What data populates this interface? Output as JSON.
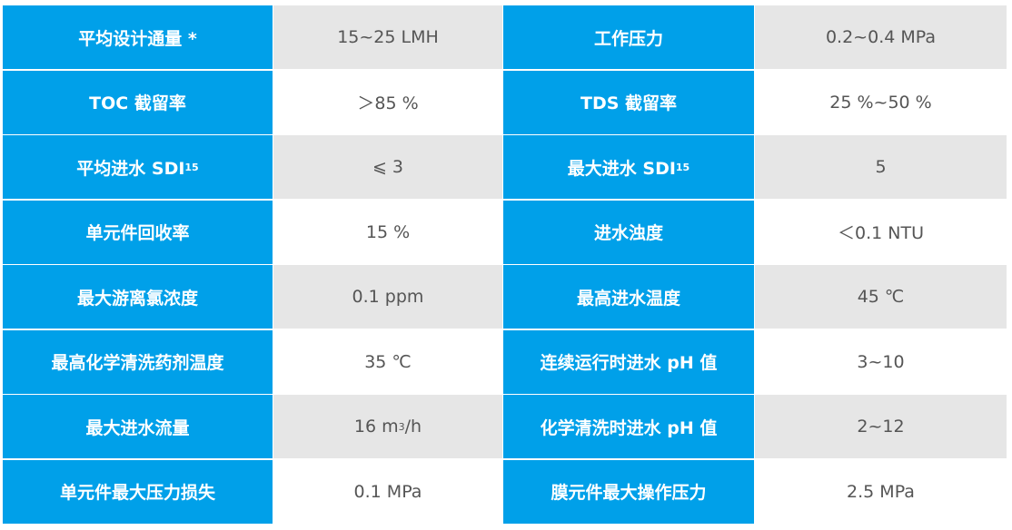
{
  "colors": {
    "label_bg": "#00a0e9",
    "alt_row_bg": "#e6e6e6"
  },
  "rows": [
    {
      "l1": "平均设计通量 *",
      "v1": "15~25 LMH",
      "l2": "工作压力",
      "v2": "0.2~0.4 MPa"
    },
    {
      "l1": "TOC 截留率",
      "v1": "＞85 %",
      "l2": "TDS 截留率",
      "v2": "25 %~50 %"
    },
    {
      "l1": "平均进水 SDI",
      "l1_sub": "15",
      "v1": "⩽ 3",
      "l2": "最大进水 SDI",
      "l2_sub": "15",
      "v2": "5"
    },
    {
      "l1": "单元件回收率",
      "v1": "15 %",
      "l2": "进水浊度",
      "v2": "＜0.1 NTU"
    },
    {
      "l1": "最大游离氯浓度",
      "v1": "0.1 ppm",
      "l2": "最高进水温度",
      "v2": "45 ℃"
    },
    {
      "l1": "最高化学清洗药剂温度",
      "v1": "35 ℃",
      "l2": "连续运行时进水 pH 值",
      "v2": "3~10"
    },
    {
      "l1": "最大进水流量",
      "v1": "16 m",
      "v1_sup": "3",
      "v1_suffix": "/h",
      "l2": "化学清洗时进水 pH 值",
      "v2": "2~12"
    },
    {
      "l1": "单元件最大压力损失",
      "v1": "0.1 MPa",
      "l2": "膜元件最大操作压力",
      "v2": "2.5 MPa"
    }
  ]
}
